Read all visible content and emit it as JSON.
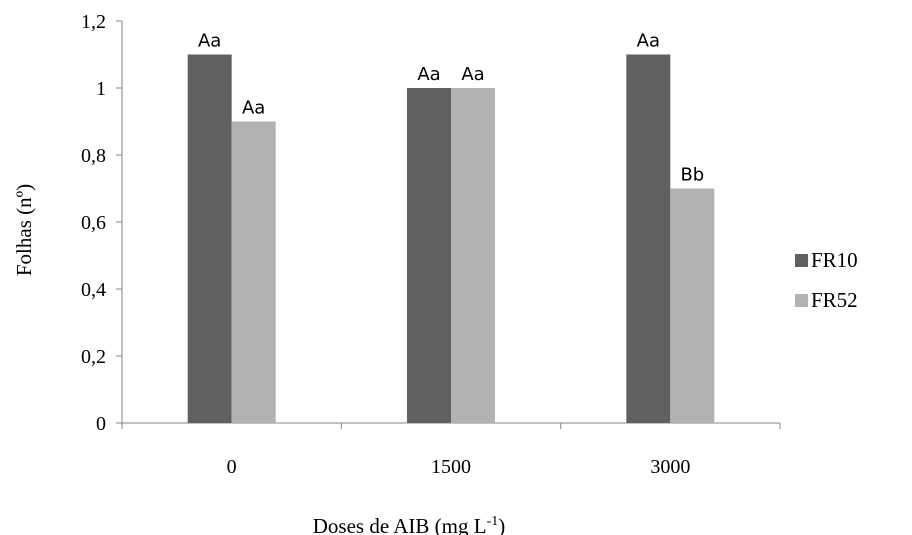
{
  "chart_data": {
    "type": "bar",
    "categories": [
      "0",
      "1500",
      "3000"
    ],
    "series": [
      {
        "name": "FR10",
        "values": [
          1.1,
          1.0,
          1.1
        ],
        "labels": [
          "Aa",
          "Aa",
          "Aa"
        ],
        "color": "#606060"
      },
      {
        "name": "FR52",
        "values": [
          0.9,
          1.0,
          0.7
        ],
        "labels": [
          "Aa",
          "Aa",
          "Bb"
        ],
        "color": "#b2b2b2"
      }
    ],
    "title": "",
    "xlabel": "Doses de AIB (mg L",
    "xlabel_superscript": "-1",
    "xlabel_suffix": ")",
    "ylabel": "Folhas (nº)",
    "ylim": [
      0,
      1.2
    ],
    "yticks": [
      "0",
      "0,2",
      "0,4",
      "0,6",
      "0,8",
      "1",
      "1,2"
    ],
    "ytick_values": [
      0,
      0.2,
      0.4,
      0.6,
      0.8,
      1.0,
      1.2
    ],
    "grid": false,
    "legend_position": "right"
  }
}
